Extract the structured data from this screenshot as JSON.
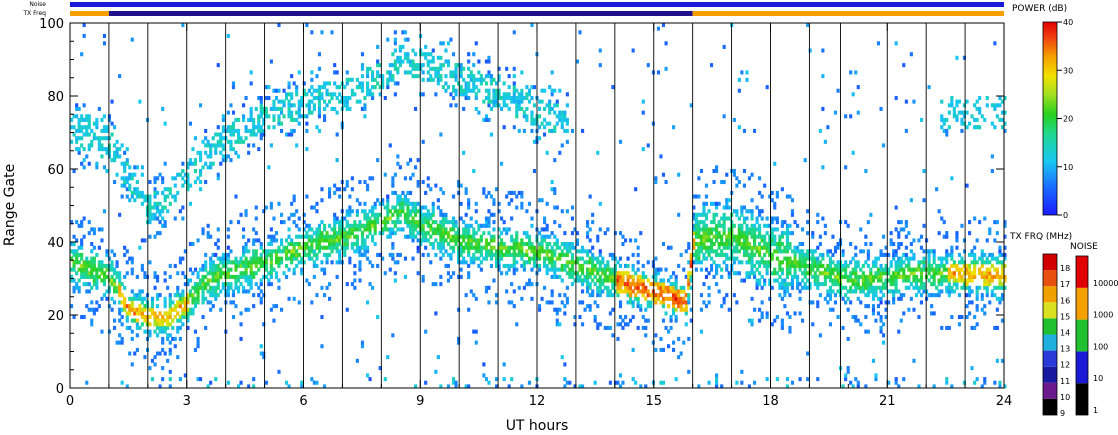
{
  "chart_data": {
    "type": "heatmap",
    "xlabel": "UT hours",
    "ylabel": "Range Gate",
    "xlim": [
      0,
      24
    ],
    "ylim": [
      0,
      100
    ],
    "x_ticks": [
      "0",
      "3",
      "6",
      "9",
      "12",
      "15",
      "18",
      "21",
      "24"
    ],
    "y_ticks": [
      "0",
      "20",
      "40",
      "60",
      "80",
      "100"
    ],
    "x_tick_values": [
      0,
      3,
      6,
      9,
      12,
      15,
      18,
      21,
      24
    ],
    "y_tick_values": [
      0,
      20,
      40,
      60,
      80,
      100
    ],
    "scan_boundaries_hours": [
      1,
      2,
      3,
      4,
      5,
      6,
      7,
      8,
      9,
      10,
      11,
      12,
      13,
      14,
      15,
      16,
      17,
      18,
      19,
      19.8,
      21,
      22,
      23
    ],
    "top_bars": {
      "noise_label": "Noise",
      "txfreq_label": "TX Freq",
      "noise_color": "#1a1ad6",
      "txfreq_segments": [
        {
          "from": 0,
          "to": 1,
          "color": "#f5a000"
        },
        {
          "from": 1,
          "to": 16,
          "color": "#20108a"
        },
        {
          "from": 16,
          "to": 24,
          "color": "#f5a000"
        }
      ]
    },
    "echo_bands": [
      {
        "name": "lower-band",
        "points": [
          [
            0,
            34
          ],
          [
            1,
            30
          ],
          [
            1.5,
            21
          ],
          [
            2,
            19
          ],
          [
            2.5,
            19
          ],
          [
            3,
            23
          ],
          [
            3.5,
            29
          ],
          [
            4,
            31
          ],
          [
            5,
            34
          ],
          [
            6,
            38
          ],
          [
            7,
            41
          ],
          [
            8,
            45
          ],
          [
            8.5,
            48
          ],
          [
            9,
            44
          ],
          [
            10,
            40
          ],
          [
            11,
            38
          ],
          [
            12,
            37
          ],
          [
            13,
            33
          ],
          [
            14,
            29
          ],
          [
            15,
            26
          ],
          [
            15.8,
            23
          ],
          [
            16,
            40
          ],
          [
            17,
            41
          ],
          [
            18,
            36
          ],
          [
            19,
            32
          ],
          [
            20,
            29
          ],
          [
            21,
            30
          ],
          [
            22,
            31
          ],
          [
            23,
            31
          ],
          [
            24,
            30
          ]
        ]
      },
      {
        "name": "upper-band",
        "points": [
          [
            0,
            70
          ],
          [
            1,
            66
          ],
          [
            2,
            48
          ],
          [
            3,
            58
          ],
          [
            4,
            68
          ],
          [
            5,
            74
          ],
          [
            6,
            78
          ],
          [
            7,
            80
          ],
          [
            8,
            85
          ],
          [
            8.5,
            90
          ],
          [
            9,
            88
          ],
          [
            10,
            84
          ],
          [
            11,
            80
          ],
          [
            12,
            75
          ],
          [
            12.8,
            72
          ]
        ]
      }
    ],
    "power_colorbar": {
      "title": "POWER (dB)",
      "min": 0,
      "max": 40,
      "ticks": [
        "0",
        "10",
        "20",
        "30",
        "40"
      ]
    },
    "txfreq_colorbar": {
      "title": "TX FRQ (MHz)",
      "labels": [
        "9",
        "10",
        "11",
        "12",
        "13",
        "14",
        "15",
        "16",
        "17",
        "18"
      ],
      "colors": [
        "#000000",
        "#6a1a8a",
        "#1a1aa0",
        "#2a3ad8",
        "#20b0e0",
        "#20c030",
        "#d8e020",
        "#f0a000",
        "#e85010",
        "#d00000"
      ]
    },
    "noise_colorbar": {
      "title": "NOISE",
      "labels": [
        "1",
        "10",
        "100",
        "1000",
        "10000"
      ],
      "colors": [
        "#000000",
        "#1a1ad6",
        "#20c030",
        "#f5a000",
        "#e00000"
      ]
    }
  }
}
